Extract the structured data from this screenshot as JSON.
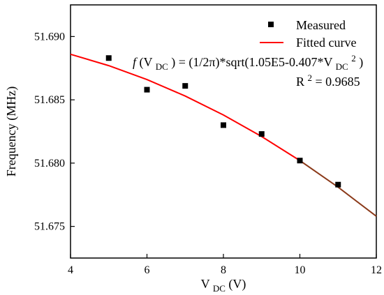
{
  "chart_data": {
    "type": "scatter",
    "title": "",
    "xlabel": "V_DC (V)",
    "ylabel": "Frequency (MHz)",
    "xlim": [
      4,
      12
    ],
    "ylim": [
      51.6725,
      51.6925
    ],
    "x_ticks": [
      4,
      6,
      8,
      10,
      12
    ],
    "y_ticks": [
      51.675,
      51.68,
      51.685,
      51.69
    ],
    "x_tick_labels": [
      "4",
      "6",
      "8",
      "10",
      "12"
    ],
    "y_tick_labels": [
      "51.675",
      "51.680",
      "51.685",
      "51.690"
    ],
    "grid": false,
    "legend_position": "top-right",
    "series": [
      {
        "name": "Measured",
        "kind": "scatter",
        "color": "#000000",
        "marker": "square",
        "x": [
          5,
          6,
          7,
          8,
          9,
          10,
          11
        ],
        "y": [
          51.6883,
          51.6858,
          51.6861,
          51.683,
          51.6823,
          51.6802,
          51.6783
        ]
      },
      {
        "name": "Fitted curve",
        "kind": "line",
        "color": "#ff0000",
        "x": [
          4,
          5,
          6,
          7,
          8,
          9,
          10,
          11,
          12
        ],
        "y": [
          51.6886,
          51.6877,
          51.6866,
          51.6853,
          51.6838,
          51.6821,
          51.6802,
          51.6781,
          51.6758
        ]
      }
    ],
    "annotations": {
      "equation": {
        "f": "f",
        "open": "(V",
        "sub1": "DC",
        "middle": ") = (1/2π)*sqrt(1.05E5-0.407*V",
        "sub2": "DC",
        "sup": "2",
        "close": ")"
      },
      "r2": {
        "prefix": "R",
        "sup": "2",
        "value": " = 0.9685"
      }
    },
    "axis_label_parts": {
      "x": {
        "main": "V",
        "sub": "DC",
        "suffix": " (V)"
      },
      "y": "Frequency (MHz)"
    }
  }
}
